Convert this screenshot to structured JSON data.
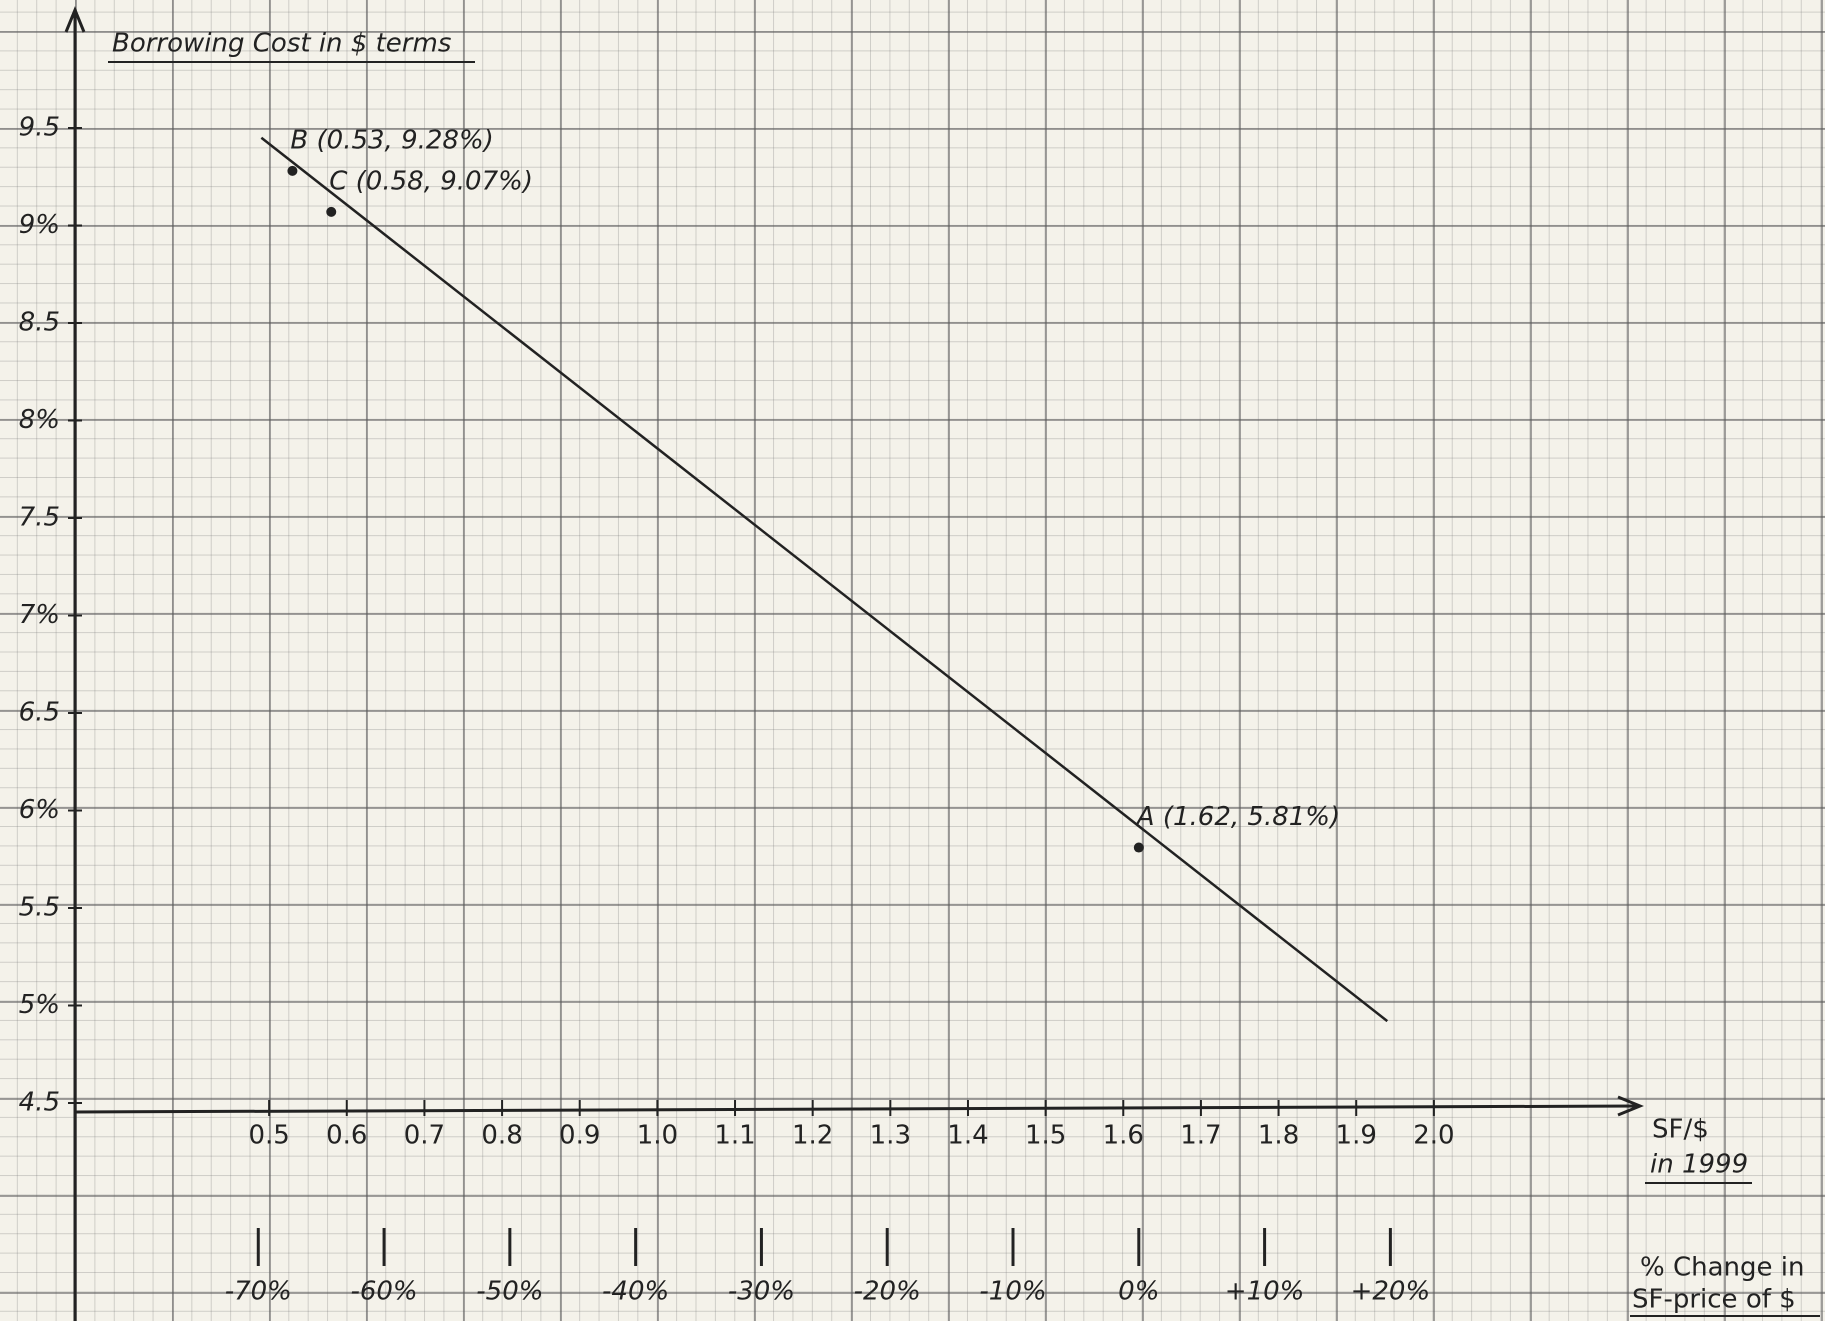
{
  "chart_data": {
    "type": "line",
    "title": "Borrowing Cost in $ terms",
    "x_label": [
      "SF/$",
      "in 1999"
    ],
    "x2_label": [
      "% Change in",
      "SF-price of $"
    ],
    "xlim": [
      0.25,
      2.25
    ],
    "xticks": [
      0.5,
      0.6,
      0.7,
      0.8,
      0.9,
      {
        "value": 1,
        "label": "1.0"
      },
      1.1,
      1.2,
      1.3,
      1.4,
      1.5,
      1.6,
      1.7,
      1.8,
      1.9,
      {
        "value": 2,
        "label": "2.0"
      }
    ],
    "x2lim": [
      -84.57,
      38.89
    ],
    "x2ticks": [
      {
        "value": -70,
        "label": "-70%"
      },
      {
        "value": -60,
        "label": "-60%"
      },
      {
        "value": -50,
        "label": "-50%"
      },
      {
        "value": -40,
        "label": "-40%"
      },
      {
        "value": -30,
        "label": "-30%"
      },
      {
        "value": -20,
        "label": "-20%"
      },
      {
        "value": -10,
        "label": "-10%"
      },
      {
        "value": 0,
        "label": "0%"
      },
      {
        "value": 10,
        "label": "+10%"
      },
      {
        "value": 20,
        "label": "+20%"
      }
    ],
    "ylim": [
      4.5,
      10.1
    ],
    "yticks": [
      4.5,
      {
        "value": 5,
        "label": "5%"
      },
      5.5,
      {
        "value": 6,
        "label": "6%"
      },
      6.5,
      {
        "value": 7,
        "label": "7%"
      },
      7.5,
      {
        "value": 8,
        "label": "8%"
      },
      8.5,
      {
        "value": 9,
        "label": "9%"
      },
      9.5
    ],
    "series": [
      {
        "color": "#222222",
        "x": [
          0.49,
          1.94
        ],
        "values": [
          9.45,
          4.92
        ]
      }
    ],
    "points": [
      {
        "label": "B (0.53, 9.28%)",
        "x": 0.53,
        "y": 9.28
      },
      {
        "label": "C (0.58, 9.07%)",
        "x": 0.58,
        "y": 9.07
      },
      {
        "label": "A (1.62, 5.81%)",
        "x": 1.62,
        "y": 5.81
      }
    ]
  }
}
